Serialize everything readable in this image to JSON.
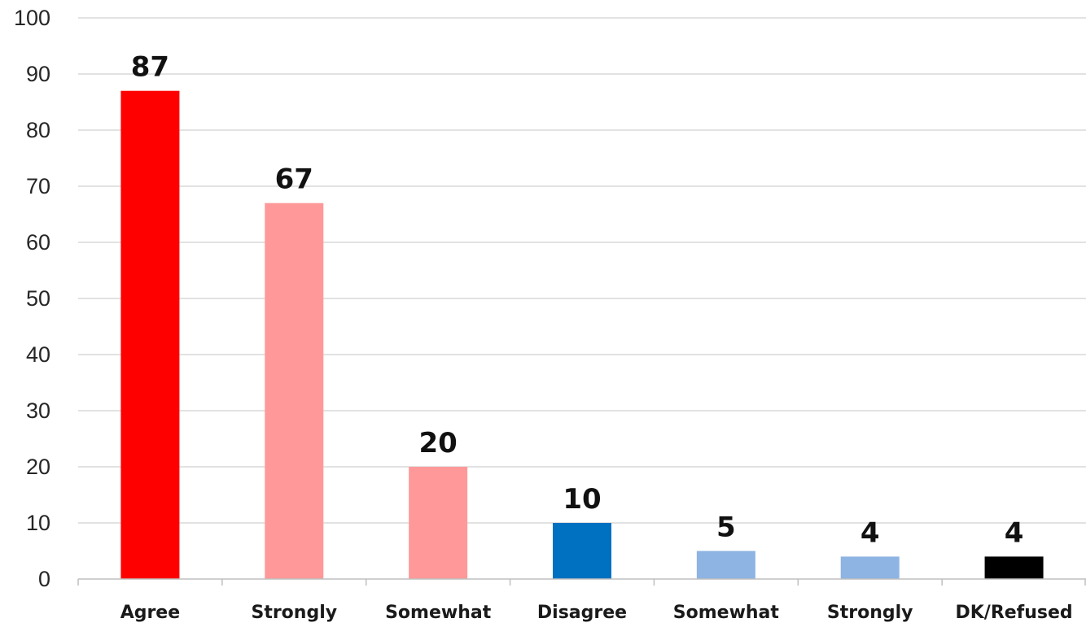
{
  "chart_data": {
    "type": "bar",
    "categories": [
      "Agree",
      "Strongly",
      "Somewhat",
      "Disagree",
      "Somewhat",
      "Strongly",
      "DK/Refused"
    ],
    "values": [
      87,
      67,
      20,
      10,
      5,
      4,
      4
    ],
    "data_labels": [
      "87",
      "67",
      "20",
      "10",
      "5",
      "4",
      "4"
    ],
    "bar_colors": [
      "#ff0000",
      "#ff9999",
      "#ff9999",
      "#0070c0",
      "#8db4e2",
      "#8db4e2",
      "#000000"
    ],
    "title": "",
    "xlabel": "",
    "ylabel": "",
    "ylim": [
      0,
      100
    ],
    "y_ticks": [
      0,
      10,
      20,
      30,
      40,
      50,
      60,
      70,
      80,
      90,
      100
    ],
    "grid": true,
    "legend": "none"
  }
}
